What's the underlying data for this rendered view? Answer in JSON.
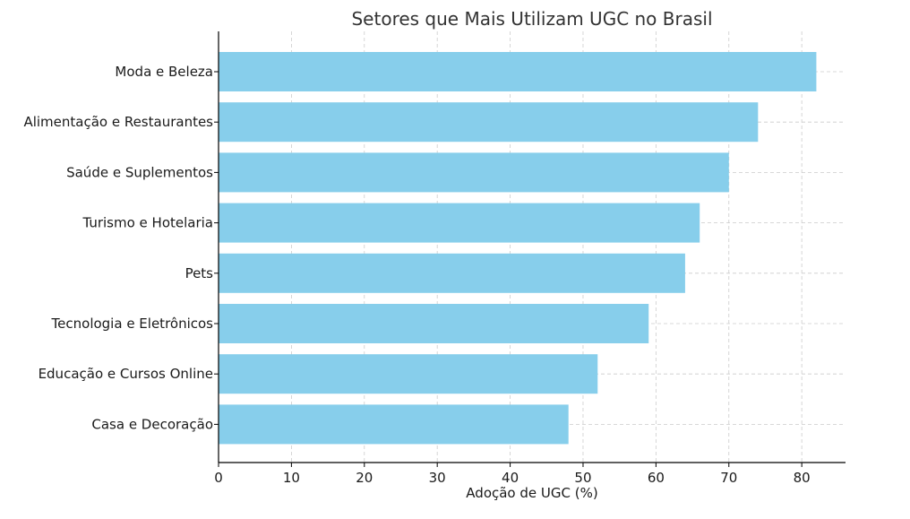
{
  "chart_data": {
    "type": "bar",
    "orientation": "horizontal",
    "title": "Setores que Mais Utilizam UGC no Brasil",
    "xlabel": "Adoção de UGC (%)",
    "ylabel": "",
    "xlim": [
      0,
      86
    ],
    "xticks": [
      0,
      10,
      20,
      30,
      40,
      50,
      60,
      70,
      80
    ],
    "grid": true,
    "bar_color": "#87ceeb",
    "categories": [
      "Moda e Beleza",
      "Alimentação e Restaurantes",
      "Saúde e Suplementos",
      "Turismo e Hotelaria",
      "Pets",
      "Tecnologia e Eletrônicos",
      "Educação e Cursos Online",
      "Casa e Decoração"
    ],
    "values": [
      82,
      74,
      70,
      66,
      64,
      59,
      52,
      48
    ]
  }
}
